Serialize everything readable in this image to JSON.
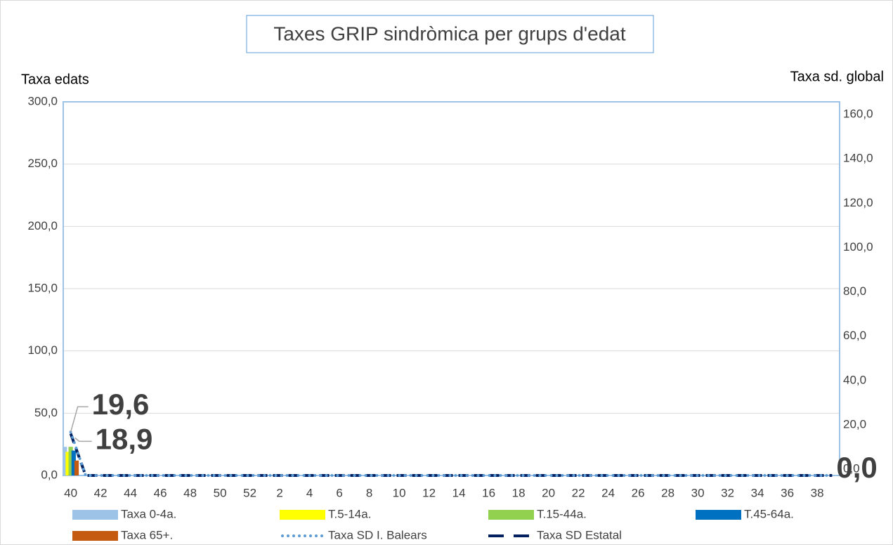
{
  "chart_data": {
    "type": "bar_line",
    "title": "Taxes GRIP sindròmica per grups d'edat",
    "y_label": "Taxa edats",
    "y2_label": "Taxa sd. global",
    "categories": [
      "40",
      null,
      "42",
      null,
      "44",
      null,
      "46",
      null,
      "48",
      null,
      "50",
      null,
      "52",
      null,
      "2",
      null,
      "4",
      null,
      "6",
      null,
      "8",
      null,
      "10",
      null,
      "12",
      null,
      "14",
      null,
      "16",
      null,
      "18",
      null,
      "20",
      null,
      "22",
      null,
      "24",
      null,
      "26",
      null,
      "28",
      null,
      "30",
      null,
      "32",
      null,
      "34",
      null,
      "36",
      null,
      "38",
      null
    ],
    "ylim": [
      0,
      300
    ],
    "yticks": [
      {
        "value": 0,
        "label": "0,0"
      },
      {
        "value": 50,
        "label": "50,0"
      },
      {
        "value": 100,
        "label": "100,0"
      },
      {
        "value": 150,
        "label": "150,0"
      },
      {
        "value": 200,
        "label": "200,0"
      },
      {
        "value": 250,
        "label": "250,0"
      },
      {
        "value": 300,
        "label": "300,0"
      }
    ],
    "y2lim": [
      0,
      168.6
    ],
    "y2ticks": [
      {
        "value": 0,
        "label": "0,0"
      },
      {
        "value": 20,
        "label": "20,0"
      },
      {
        "value": 40,
        "label": "40,0"
      },
      {
        "value": 60,
        "label": "60,0"
      },
      {
        "value": 80,
        "label": "80,0"
      },
      {
        "value": 100,
        "label": "100,0"
      },
      {
        "value": 120,
        "label": "120,0"
      },
      {
        "value": 140,
        "label": "140,0"
      },
      {
        "value": 160,
        "label": "160,0"
      }
    ],
    "grid": true,
    "legend": "bottom",
    "series": [
      {
        "name": "Taxa 0-4a.",
        "kind": "bar",
        "color": "#9dc3e6",
        "values": [
          23,
          null,
          null,
          null,
          null,
          null,
          null,
          null,
          null,
          null,
          null,
          null,
          null,
          null,
          null,
          null,
          null,
          null,
          null,
          null,
          null,
          null,
          null,
          null,
          null,
          null,
          null,
          null,
          null,
          null,
          null,
          null,
          null,
          null,
          null,
          null,
          null,
          null,
          null,
          null,
          null,
          null,
          null,
          null,
          null,
          null,
          null,
          null,
          null,
          null,
          null,
          null
        ]
      },
      {
        "name": "T.5-14a.",
        "kind": "bar",
        "color": "#ffff00",
        "values": [
          19,
          null,
          null,
          null,
          null,
          null,
          null,
          null,
          null,
          null,
          null,
          null,
          null,
          null,
          null,
          null,
          null,
          null,
          null,
          null,
          null,
          null,
          null,
          null,
          null,
          null,
          null,
          null,
          null,
          null,
          null,
          null,
          null,
          null,
          null,
          null,
          null,
          null,
          null,
          null,
          null,
          null,
          null,
          null,
          null,
          null,
          null,
          null,
          null,
          null,
          null,
          null
        ]
      },
      {
        "name": "T.15-44a.",
        "kind": "bar",
        "color": "#92d050",
        "values": [
          23,
          null,
          null,
          null,
          null,
          null,
          null,
          null,
          null,
          null,
          null,
          null,
          null,
          null,
          null,
          null,
          null,
          null,
          null,
          null,
          null,
          null,
          null,
          null,
          null,
          null,
          null,
          null,
          null,
          null,
          null,
          null,
          null,
          null,
          null,
          null,
          null,
          null,
          null,
          null,
          null,
          null,
          null,
          null,
          null,
          null,
          null,
          null,
          null,
          null,
          null,
          null
        ]
      },
      {
        "name": "T.45-64a.",
        "kind": "bar",
        "color": "#0070c0",
        "values": [
          20,
          null,
          null,
          null,
          null,
          null,
          null,
          null,
          null,
          null,
          null,
          null,
          null,
          null,
          null,
          null,
          null,
          null,
          null,
          null,
          null,
          null,
          null,
          null,
          null,
          null,
          null,
          null,
          null,
          null,
          null,
          null,
          null,
          null,
          null,
          null,
          null,
          null,
          null,
          null,
          null,
          null,
          null,
          null,
          null,
          null,
          null,
          null,
          null,
          null,
          null,
          null
        ]
      },
      {
        "name": "Taxa 65+.",
        "kind": "bar",
        "color": "#c55a11",
        "values": [
          12,
          null,
          null,
          null,
          null,
          null,
          null,
          null,
          null,
          null,
          null,
          null,
          null,
          null,
          null,
          null,
          null,
          null,
          null,
          null,
          null,
          null,
          null,
          null,
          null,
          null,
          null,
          null,
          null,
          null,
          null,
          null,
          null,
          null,
          null,
          null,
          null,
          null,
          null,
          null,
          null,
          null,
          null,
          null,
          null,
          null,
          null,
          null,
          null,
          null,
          null,
          null
        ]
      },
      {
        "name": "Taxa SD I. Balears",
        "kind": "dotted",
        "axis": "y2",
        "color": "#5b9bd5",
        "values": [
          19.6,
          0,
          0,
          0,
          0,
          0,
          0,
          0,
          0,
          0,
          0,
          0,
          0,
          0,
          0,
          0,
          0,
          0,
          0,
          0,
          0,
          0,
          0,
          0,
          0,
          0,
          0,
          0,
          0,
          0,
          0,
          0,
          0,
          0,
          0,
          0,
          0,
          0,
          0,
          0,
          0,
          0,
          0,
          0,
          0,
          0,
          0,
          0,
          0,
          0,
          0,
          0
        ],
        "value_labels": [
          "19,6",
          null,
          null,
          null,
          null,
          null,
          null,
          null,
          null,
          null,
          null,
          null,
          null,
          null,
          null,
          null,
          null,
          null,
          null,
          null,
          null,
          null,
          null,
          null,
          null,
          null,
          null,
          null,
          null,
          null,
          null,
          null,
          null,
          null,
          null,
          null,
          null,
          null,
          null,
          null,
          null,
          null,
          null,
          null,
          null,
          null,
          null,
          null,
          null,
          null,
          null,
          "0,0"
        ]
      },
      {
        "name": "Taxa SD Estatal",
        "kind": "dashed",
        "axis": "y2",
        "color": "#002060",
        "values": [
          18.9,
          0,
          0,
          0,
          0,
          0,
          0,
          0,
          0,
          0,
          0,
          0,
          0,
          0,
          0,
          0,
          0,
          0,
          0,
          0,
          0,
          0,
          0,
          0,
          0,
          0,
          0,
          0,
          0,
          0,
          0,
          0,
          0,
          0,
          0,
          0,
          0,
          0,
          0,
          0,
          0,
          0,
          0,
          0,
          0,
          0,
          0,
          0,
          0,
          0,
          0,
          0
        ],
        "value_labels": [
          "18,9",
          null,
          null,
          null,
          null,
          null,
          null,
          null,
          null,
          null,
          null,
          null,
          null,
          null,
          null,
          null,
          null,
          null,
          null,
          null,
          null,
          null,
          null,
          null,
          null,
          null,
          null,
          null,
          null,
          null,
          null,
          null,
          null,
          null,
          null,
          null,
          null,
          null,
          null,
          null,
          null,
          null,
          null,
          null,
          null,
          null,
          null,
          null,
          null,
          null,
          null,
          null
        ]
      }
    ]
  }
}
